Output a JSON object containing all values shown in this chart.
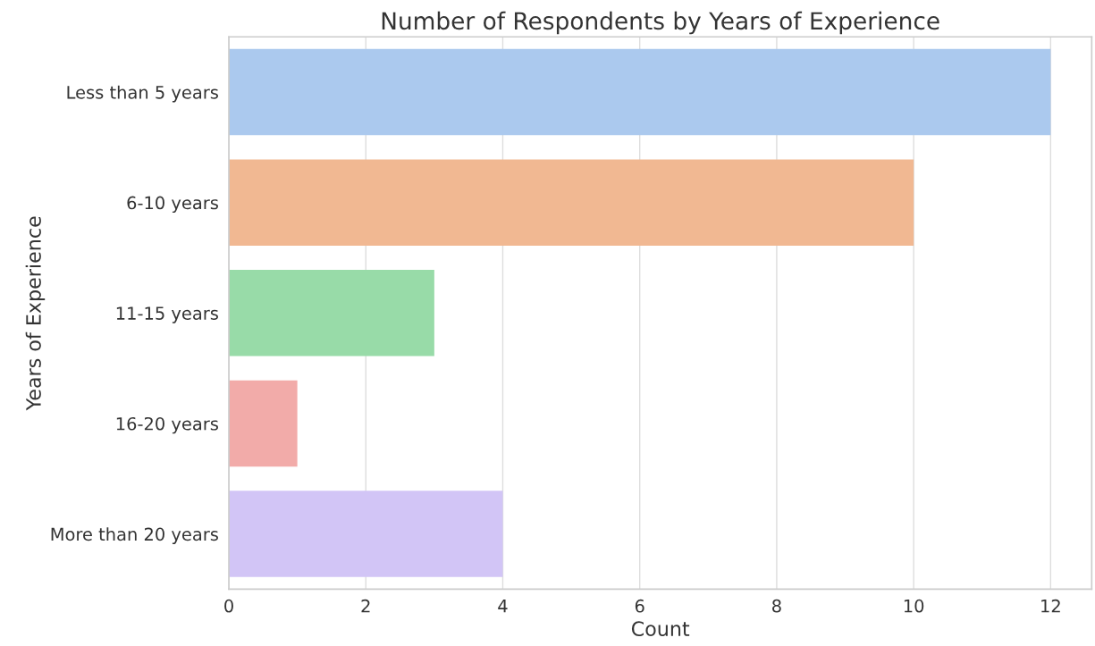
{
  "chart_data": {
    "type": "bar",
    "orientation": "horizontal",
    "title": "Number of Respondents by Years of Experience",
    "xlabel": "Count",
    "ylabel": "Years of Experience",
    "categories": [
      "Less than 5 years",
      "6-10 years",
      "11-15 years",
      "16-20 years",
      "More than 20 years"
    ],
    "values": [
      12,
      10,
      3,
      1,
      4
    ],
    "colors": [
      "#abc9ee",
      "#f1b892",
      "#98dba8",
      "#f2aba9",
      "#d2c5f6"
    ],
    "xlim": [
      0,
      12.6
    ],
    "xticks": [
      0,
      2,
      4,
      6,
      8,
      10,
      12
    ],
    "grid": "x"
  }
}
